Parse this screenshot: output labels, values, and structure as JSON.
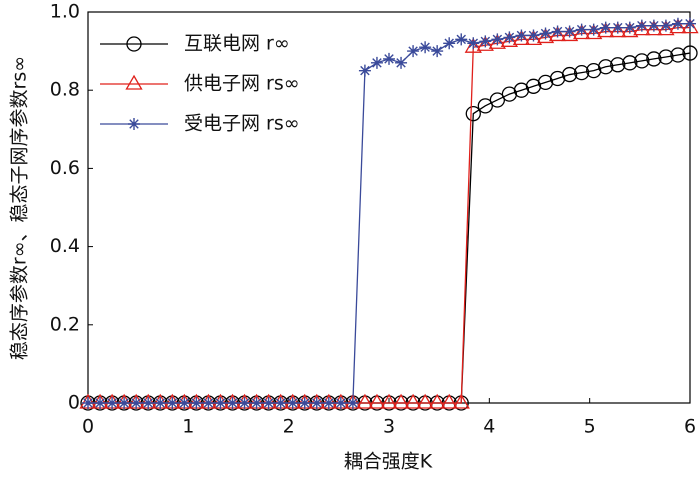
{
  "chart_data": {
    "type": "line",
    "xlabel": "耦合强度K",
    "ylabel": "稳态序参数r∞、稳态子网序参数rs∞",
    "x": [
      0,
      0.12,
      0.24,
      0.36,
      0.48,
      0.6,
      0.72,
      0.84,
      0.96,
      1.08,
      1.2,
      1.32,
      1.44,
      1.56,
      1.68,
      1.8,
      1.92,
      2.04,
      2.16,
      2.28,
      2.4,
      2.52,
      2.64,
      2.76,
      2.88,
      3,
      3.12,
      3.24,
      3.36,
      3.48,
      3.6,
      3.72,
      3.84,
      3.96,
      4.08,
      4.2,
      4.32,
      4.44,
      4.56,
      4.68,
      4.8,
      4.92,
      5.04,
      5.16,
      5.28,
      5.4,
      5.52,
      5.64,
      5.76,
      5.88,
      6
    ],
    "series": [
      {
        "name": "互联电网 r∞",
        "color": "#000000",
        "marker": "circle",
        "values": [
          0,
          0,
          0,
          0,
          0,
          0,
          0,
          0,
          0,
          0,
          0,
          0,
          0,
          0,
          0,
          0,
          0,
          0,
          0,
          0,
          0,
          0,
          0,
          0,
          0,
          0,
          0,
          0,
          0,
          0,
          0,
          0,
          0.74,
          0.76,
          0.775,
          0.79,
          0.8,
          0.81,
          0.82,
          0.83,
          0.84,
          0.845,
          0.85,
          0.86,
          0.865,
          0.87,
          0.875,
          0.88,
          0.885,
          0.89,
          0.895
        ]
      },
      {
        "name": "供电子网 rs∞",
        "color": "#e0201b",
        "marker": "triangle",
        "values": [
          0,
          0,
          0,
          0,
          0,
          0,
          0,
          0,
          0,
          0,
          0,
          0,
          0,
          0,
          0,
          0,
          0,
          0,
          0,
          0,
          0,
          0,
          0,
          0,
          0,
          0,
          0,
          0,
          0,
          0,
          0,
          0,
          0.91,
          0.915,
          0.92,
          0.925,
          0.93,
          0.93,
          0.935,
          0.94,
          0.94,
          0.945,
          0.945,
          0.95,
          0.95,
          0.95,
          0.955,
          0.955,
          0.955,
          0.96,
          0.96
        ]
      },
      {
        "name": "受电子网 rs∞",
        "color": "#3a4a9a",
        "marker": "star",
        "values": [
          0,
          0,
          0,
          0,
          0,
          0,
          0,
          0,
          0,
          0,
          0,
          0,
          0,
          0,
          0,
          0,
          0,
          0,
          0,
          0,
          0,
          0,
          0,
          0.85,
          0.87,
          0.88,
          0.87,
          0.9,
          0.91,
          0.9,
          0.92,
          0.93,
          0.92,
          0.925,
          0.93,
          0.935,
          0.94,
          0.94,
          0.945,
          0.95,
          0.95,
          0.955,
          0.955,
          0.96,
          0.96,
          0.96,
          0.965,
          0.965,
          0.965,
          0.97,
          0.97
        ]
      }
    ],
    "xlim": [
      0,
      6
    ],
    "xticks": [
      0,
      1,
      2,
      3,
      4,
      5,
      6
    ],
    "ylim": [
      0,
      1
    ],
    "yticks": [
      0,
      0.2,
      0.4,
      0.6,
      0.8,
      {
        "value": 1,
        "label": "1.0"
      }
    ],
    "grid": false,
    "legend": "upper left"
  }
}
